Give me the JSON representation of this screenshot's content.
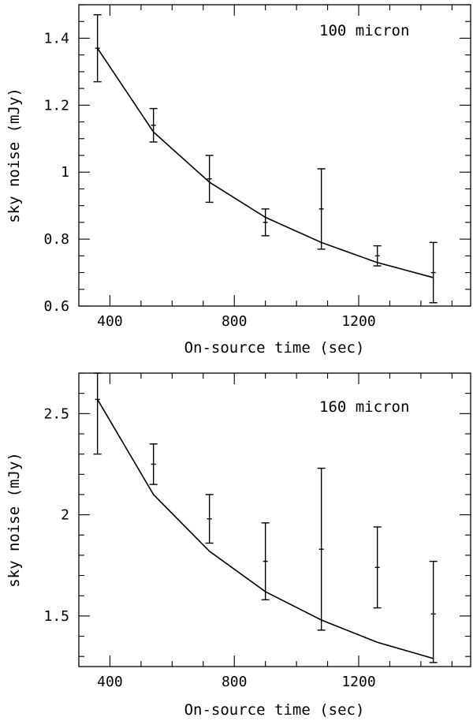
{
  "chart_data": [
    {
      "type": "scatter",
      "annotation": "100 micron",
      "xlabel": "On-source time (sec)",
      "ylabel": "sky noise (mJy)",
      "xlim": [
        300,
        1560
      ],
      "ylim": [
        0.6,
        1.5
      ],
      "xticks": [
        400,
        800,
        1200
      ],
      "yticks": [
        0.6,
        0.8,
        1,
        1.2,
        1.4
      ],
      "ytick_labels": [
        "0.6",
        "0.8",
        "1",
        "1.2",
        "1.4"
      ],
      "points": {
        "x": [
          360,
          540,
          720,
          900,
          1080,
          1260,
          1440
        ],
        "y": [
          1.37,
          1.14,
          0.98,
          0.85,
          0.89,
          0.75,
          0.7
        ],
        "yerr_low": [
          1.27,
          1.09,
          0.91,
          0.81,
          0.77,
          0.72,
          0.61
        ],
        "yerr_high": [
          1.47,
          1.19,
          1.05,
          0.89,
          1.01,
          0.78,
          0.79
        ]
      },
      "fit": {
        "x": [
          360,
          540,
          720,
          900,
          1080,
          1260,
          1440
        ],
        "y": [
          1.37,
          1.12,
          0.97,
          0.865,
          0.79,
          0.73,
          0.685
        ]
      }
    },
    {
      "type": "scatter",
      "annotation": "160 micron",
      "xlabel": "On-source time (sec)",
      "ylabel": "sky noise (mJy)",
      "xlim": [
        300,
        1560
      ],
      "ylim": [
        1.25,
        2.7
      ],
      "xticks": [
        400,
        800,
        1200
      ],
      "yticks": [
        1.5,
        2,
        2.5
      ],
      "ytick_labels": [
        "1.5",
        "2",
        "2.5"
      ],
      "points": {
        "x": [
          360,
          540,
          720,
          900,
          1080,
          1260,
          1440
        ],
        "y": [
          2.57,
          2.25,
          1.98,
          1.77,
          1.83,
          1.74,
          1.51
        ],
        "yerr_low": [
          2.3,
          2.15,
          1.86,
          1.58,
          1.43,
          1.54,
          1.27
        ],
        "yerr_high": [
          2.72,
          2.35,
          2.1,
          1.96,
          2.23,
          1.94,
          1.77
        ]
      },
      "fit": {
        "x": [
          360,
          540,
          720,
          900,
          1080,
          1260,
          1440
        ],
        "y": [
          2.57,
          2.1,
          1.82,
          1.62,
          1.48,
          1.37,
          1.29
        ]
      }
    }
  ]
}
